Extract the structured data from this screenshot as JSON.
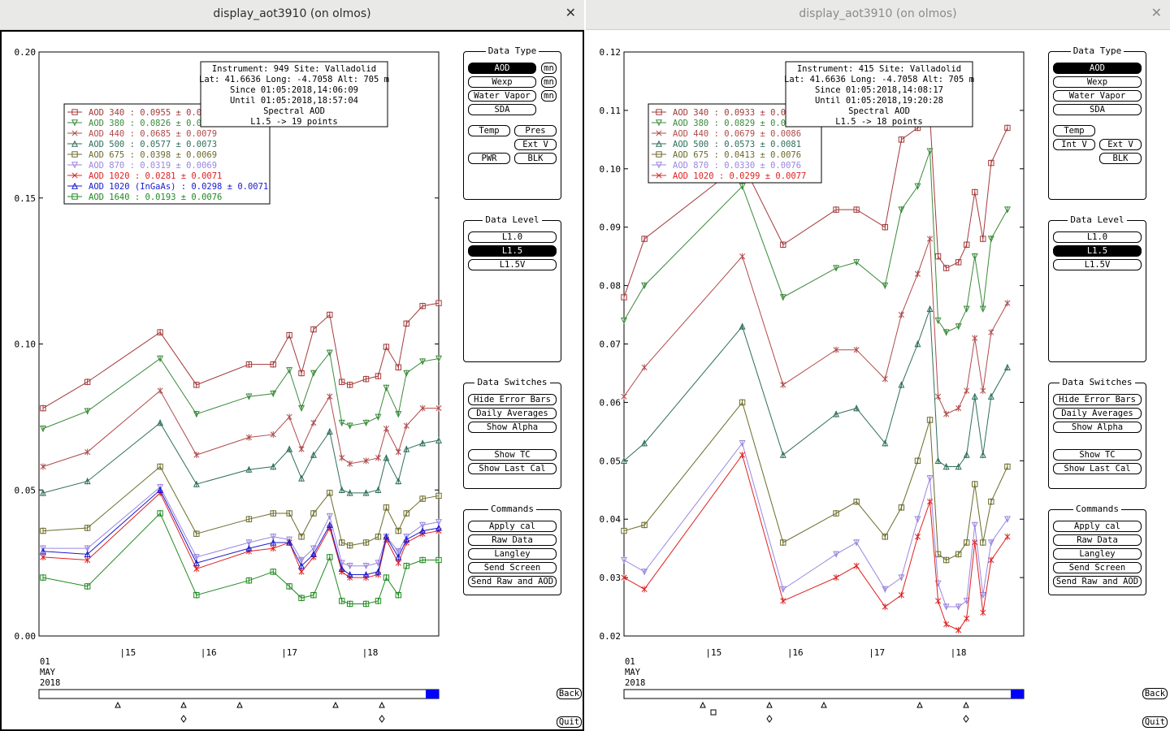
{
  "windows": [
    {
      "title": "display_aot3910 (on olmos)",
      "active": true,
      "info": [
        "Instrument: 949 Site: Valladolid",
        "Lat: 41.6636 Long: -4.7058 Alt: 705 m",
        "Since 01:05:2018,14:06:09",
        "Until 01:05:2018,18:57:04",
        "Spectral AOD",
        "L1.5 -> 19 points"
      ],
      "legend": [
        {
          "label": "AOD 340   : 0.0955 ± 0.0",
          "color": "#a33a3a",
          "marker": "square"
        },
        {
          "label": "AOD 380   : 0.0826 ± 0.0",
          "color": "#3a8a3a",
          "marker": "tri-down"
        },
        {
          "label": "AOD 440   : 0.0685 ± 0.0079",
          "color": "#b04a4a",
          "marker": "x"
        },
        {
          "label": "AOD 500   : 0.0577 ± 0.0073",
          "color": "#2e6e5a",
          "marker": "tri-up"
        },
        {
          "label": "AOD 675   : 0.0398 ± 0.0069",
          "color": "#6b6b2a",
          "marker": "square"
        },
        {
          "label": "AOD 870   : 0.0319 ± 0.0069",
          "color": "#9a86e0",
          "marker": "tri-down"
        },
        {
          "label": "AOD 1020   : 0.0281 ± 0.0071",
          "color": "#e02020",
          "marker": "x"
        },
        {
          "label": "AOD 1020 (InGaAs)   : 0.0298 ± 0.0071",
          "color": "#1a1ad0",
          "marker": "tri-up"
        },
        {
          "label": "AOD 1640   : 0.0193 ± 0.0076",
          "color": "#1e8a1e",
          "marker": "square"
        }
      ],
      "chart_data": {
        "type": "line",
        "ylim": [
          0.0,
          0.2
        ],
        "yticks": [
          "0.20",
          "0.15",
          "0.10",
          "0.05",
          "0.00"
        ],
        "x": [
          14.05,
          14.6,
          15.5,
          15.95,
          16.6,
          16.9,
          17.1,
          17.25,
          17.4,
          17.6,
          17.75,
          17.85,
          18.05,
          18.2,
          18.3,
          18.45,
          18.55,
          18.75,
          18.95
        ],
        "xlim": [
          14.0,
          18.95
        ],
        "xticks": [
          "|15",
          "|16",
          "|17",
          "|18"
        ],
        "series": [
          {
            "name": "AOD 340",
            "values": [
              0.078,
              0.087,
              0.104,
              0.086,
              0.093,
              0.093,
              0.103,
              0.09,
              0.105,
              0.11,
              0.087,
              0.086,
              0.088,
              0.089,
              0.099,
              0.092,
              0.107,
              0.113,
              0.114
            ]
          },
          {
            "name": "AOD 380",
            "values": [
              0.071,
              0.077,
              0.095,
              0.076,
              0.082,
              0.083,
              0.091,
              0.078,
              0.09,
              0.097,
              0.073,
              0.072,
              0.073,
              0.075,
              0.085,
              0.076,
              0.09,
              0.094,
              0.095
            ]
          },
          {
            "name": "AOD 440",
            "values": [
              0.058,
              0.063,
              0.084,
              0.062,
              0.068,
              0.069,
              0.075,
              0.064,
              0.073,
              0.082,
              0.061,
              0.059,
              0.06,
              0.061,
              0.071,
              0.063,
              0.072,
              0.078,
              0.078
            ]
          },
          {
            "name": "AOD 500",
            "values": [
              0.049,
              0.053,
              0.073,
              0.052,
              0.057,
              0.058,
              0.064,
              0.054,
              0.062,
              0.07,
              0.05,
              0.049,
              0.049,
              0.05,
              0.061,
              0.053,
              0.064,
              0.066,
              0.067
            ]
          },
          {
            "name": "AOD 675",
            "values": [
              0.036,
              0.037,
              0.058,
              0.035,
              0.04,
              0.042,
              0.042,
              0.034,
              0.042,
              0.049,
              0.032,
              0.031,
              0.032,
              0.034,
              0.044,
              0.036,
              0.042,
              0.047,
              0.048
            ]
          },
          {
            "name": "AOD 870",
            "values": [
              0.03,
              0.03,
              0.051,
              0.027,
              0.032,
              0.034,
              0.033,
              0.026,
              0.03,
              0.041,
              0.025,
              0.024,
              0.024,
              0.025,
              0.034,
              0.029,
              0.034,
              0.038,
              0.039
            ]
          },
          {
            "name": "AOD 1020",
            "values": [
              0.027,
              0.026,
              0.049,
              0.023,
              0.029,
              0.03,
              0.032,
              0.022,
              0.027,
              0.037,
              0.022,
              0.02,
              0.02,
              0.021,
              0.033,
              0.025,
              0.032,
              0.035,
              0.036
            ]
          },
          {
            "name": "AOD 1020 (InGaAs)",
            "values": [
              0.029,
              0.028,
              0.05,
              0.025,
              0.03,
              0.032,
              0.032,
              0.024,
              0.028,
              0.038,
              0.023,
              0.021,
              0.021,
              0.022,
              0.034,
              0.027,
              0.033,
              0.036,
              0.037
            ]
          },
          {
            "name": "AOD 1640",
            "values": [
              0.02,
              0.017,
              0.042,
              0.014,
              0.019,
              0.022,
              0.017,
              0.013,
              0.014,
              0.027,
              0.012,
              0.011,
              0.011,
              0.012,
              0.02,
              0.014,
              0.024,
              0.026,
              0.026
            ]
          }
        ]
      }
    },
    {
      "title": "display_aot3910 (on olmos)",
      "active": false,
      "info": [
        "Instrument: 415 Site: Valladolid",
        "Lat: 41.6636 Long: -4.7058 Alt: 705 m",
        "Since 01:05:2018,14:08:17",
        "Until 01:05:2018,19:20:28",
        "Spectral AOD",
        "L1.5 -> 18 points"
      ],
      "legend": [
        {
          "label": "AOD 340   : 0.0933 ± 0.0",
          "color": "#a33a3a",
          "marker": "square"
        },
        {
          "label": "AOD 380   : 0.0829 ± 0.0",
          "color": "#3a8a3a",
          "marker": "tri-down"
        },
        {
          "label": "AOD 440   : 0.0679 ± 0.0086",
          "color": "#b04a4a",
          "marker": "x"
        },
        {
          "label": "AOD 500   : 0.0573 ± 0.0081",
          "color": "#2e6e5a",
          "marker": "tri-up"
        },
        {
          "label": "AOD 675   : 0.0413 ± 0.0076",
          "color": "#6b6b2a",
          "marker": "square"
        },
        {
          "label": "AOD 870   : 0.0330 ± 0.0076",
          "color": "#9a86e0",
          "marker": "tri-down"
        },
        {
          "label": "AOD 1020   : 0.0299 ± 0.0077",
          "color": "#e02020",
          "marker": "x"
        }
      ],
      "chart_data": {
        "type": "line",
        "ylim": [
          0.02,
          0.12
        ],
        "yticks": [
          "0.12",
          "0.11",
          "0.10",
          "0.09",
          "0.08",
          "0.07",
          "0.06",
          "0.05",
          "0.04",
          "0.03",
          "0.02"
        ],
        "x": [
          14.0,
          14.25,
          15.45,
          15.95,
          16.6,
          16.85,
          17.2,
          17.4,
          17.6,
          17.75,
          17.85,
          17.95,
          18.1,
          18.2,
          18.3,
          18.4,
          18.5,
          18.7
        ],
        "xlim": [
          14.0,
          18.9
        ],
        "xticks": [
          "|15",
          "|16",
          "|17",
          "|18"
        ],
        "series": [
          {
            "name": "AOD 340",
            "values": [
              0.078,
              0.088,
              0.101,
              0.087,
              0.093,
              0.093,
              0.09,
              0.105,
              0.107,
              0.109,
              0.085,
              0.083,
              0.084,
              0.087,
              0.096,
              0.088,
              0.101,
              0.107
            ]
          },
          {
            "name": "AOD 380",
            "values": [
              0.074,
              0.08,
              0.097,
              0.078,
              0.083,
              0.084,
              0.08,
              0.093,
              0.097,
              0.103,
              0.074,
              0.072,
              0.073,
              0.076,
              0.085,
              0.076,
              0.088,
              0.093
            ]
          },
          {
            "name": "AOD 440",
            "values": [
              0.061,
              0.066,
              0.085,
              0.063,
              0.069,
              0.069,
              0.064,
              0.075,
              0.082,
              0.088,
              0.061,
              0.058,
              0.059,
              0.062,
              0.071,
              0.062,
              0.072,
              0.077
            ]
          },
          {
            "name": "AOD 500",
            "values": [
              0.05,
              0.053,
              0.073,
              0.051,
              0.058,
              0.059,
              0.053,
              0.063,
              0.07,
              0.076,
              0.05,
              0.049,
              0.049,
              0.051,
              0.061,
              0.051,
              0.061,
              0.066
            ]
          },
          {
            "name": "AOD 675",
            "values": [
              0.038,
              0.039,
              0.06,
              0.036,
              0.041,
              0.043,
              0.037,
              0.042,
              0.05,
              0.057,
              0.034,
              0.033,
              0.034,
              0.036,
              0.046,
              0.036,
              0.043,
              0.049
            ]
          },
          {
            "name": "AOD 870",
            "values": [
              0.033,
              0.031,
              0.053,
              0.028,
              0.034,
              0.036,
              0.028,
              0.03,
              0.04,
              0.047,
              0.029,
              0.025,
              0.025,
              0.026,
              0.039,
              0.027,
              0.036,
              0.04
            ]
          },
          {
            "name": "AOD 1020",
            "values": [
              0.03,
              0.028,
              0.051,
              0.026,
              0.03,
              0.032,
              0.025,
              0.027,
              0.037,
              0.043,
              0.026,
              0.022,
              0.021,
              0.023,
              0.036,
              0.024,
              0.033,
              0.037
            ]
          }
        ]
      }
    }
  ],
  "date_label": {
    "day": "01",
    "month": "MAY",
    "year": "2018"
  },
  "data_type": {
    "title": "Data Type",
    "aod": "AOD",
    "wexp": "Wexp",
    "water_vapor": "Water Vapor",
    "sda": "SDA",
    "temp": "Temp",
    "pres": "Pres",
    "ext_v": "Ext V",
    "int_v": "Int V",
    "pwr": "PWR",
    "blk": "BLK",
    "mn": "mn"
  },
  "data_level": {
    "title": "Data Level",
    "l10": "L1.0",
    "l15": "L1.5",
    "l15v": "L1.5V"
  },
  "data_switches": {
    "title": "Data Switches",
    "hide_error_bars": "Hide Error Bars",
    "daily_averages": "Daily Averages",
    "show_alpha": "Show Alpha",
    "show_tc": "Show TC",
    "show_last_cal": "Show Last Cal"
  },
  "commands": {
    "title": "Commands",
    "apply_cal": "Apply cal",
    "raw_data": "Raw Data",
    "langley": "Langley",
    "send_screen": "Send Screen",
    "send_raw_aod": "Send Raw and AOD"
  },
  "nav": {
    "back": "Back",
    "quit": "Quit"
  },
  "colors": {
    "selected": "#000000",
    "timeline_marker": "#0000ff"
  }
}
